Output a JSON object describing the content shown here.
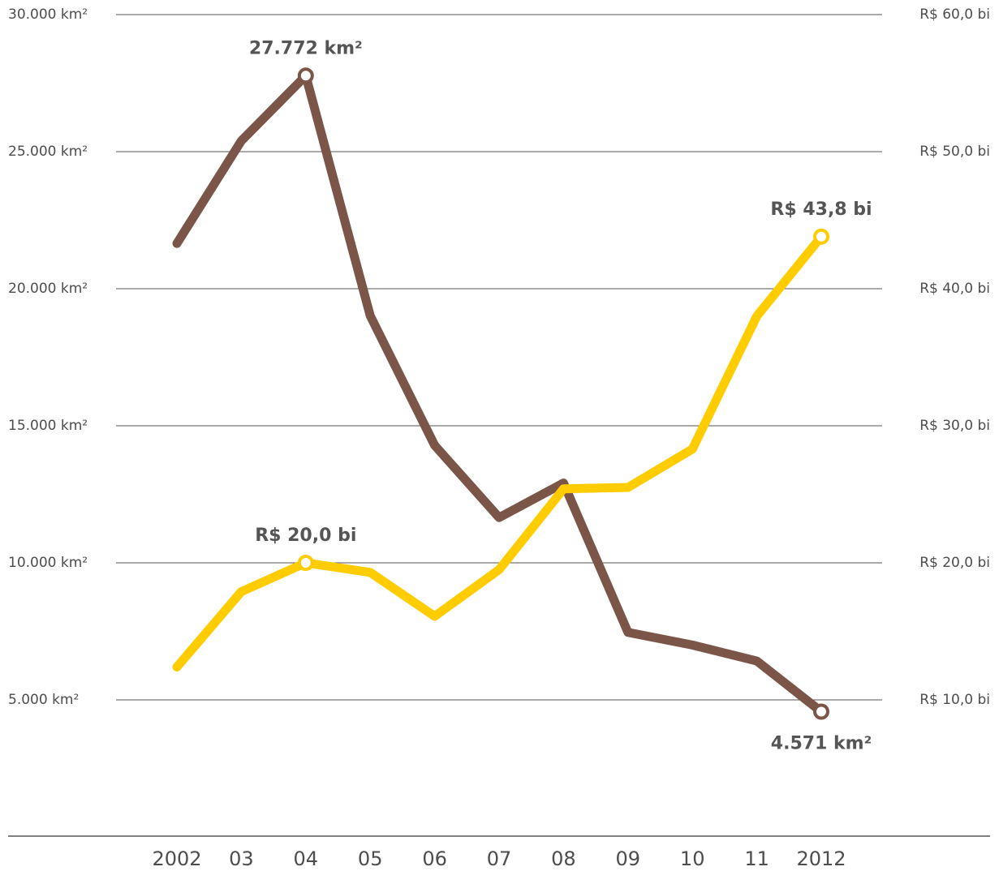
{
  "chart_data": {
    "type": "line",
    "categories": [
      "2002",
      "03",
      "04",
      "05",
      "06",
      "07",
      "08",
      "09",
      "10",
      "11",
      "2012"
    ],
    "series": [
      {
        "name": "km²",
        "color": "#7a5548",
        "values": [
          21651,
          25396,
          27772,
          19014,
          14286,
          11651,
          12911,
          7464,
          7000,
          6418,
          4571
        ],
        "value_labels": [
          null,
          null,
          "27.772 km²",
          null,
          null,
          null,
          null,
          null,
          null,
          null,
          "4.571 km²"
        ]
      },
      {
        "name": "R$ bi",
        "color": "#ffcc00",
        "axis": "y2",
        "values": [
          12.4,
          17.9,
          20.0,
          19.3,
          16.1,
          19.5,
          25.4,
          25.5,
          28.3,
          38.0,
          43.8
        ],
        "value_labels": [
          null,
          null,
          "R$ 20,0 bi",
          null,
          null,
          null,
          null,
          null,
          null,
          null,
          "R$ 43,8 bi"
        ]
      }
    ],
    "ylim": [
      0,
      30000
    ],
    "yticks": [
      {
        "value": 5000,
        "label": "5.000 km²"
      },
      {
        "value": 10000,
        "label": "10.000 km²"
      },
      {
        "value": 15000,
        "label": "15.000 km²"
      },
      {
        "value": 20000,
        "label": "20.000 km²"
      },
      {
        "value": 25000,
        "label": "25.000 km²"
      },
      {
        "value": 30000,
        "label": "30.000 km²"
      }
    ],
    "y2lim": [
      0,
      60
    ],
    "y2ticks": [
      {
        "value": 10,
        "label": "R$ 10,0 bi"
      },
      {
        "value": 20,
        "label": "R$ 20,0 bi"
      },
      {
        "value": 30,
        "label": "R$ 30,0 bi"
      },
      {
        "value": 40,
        "label": "R$ 40,0 bi"
      },
      {
        "value": 50,
        "label": "R$ 50,0 bi"
      },
      {
        "value": 60,
        "label": "R$ 60,0 bi"
      }
    ],
    "grid": true
  }
}
